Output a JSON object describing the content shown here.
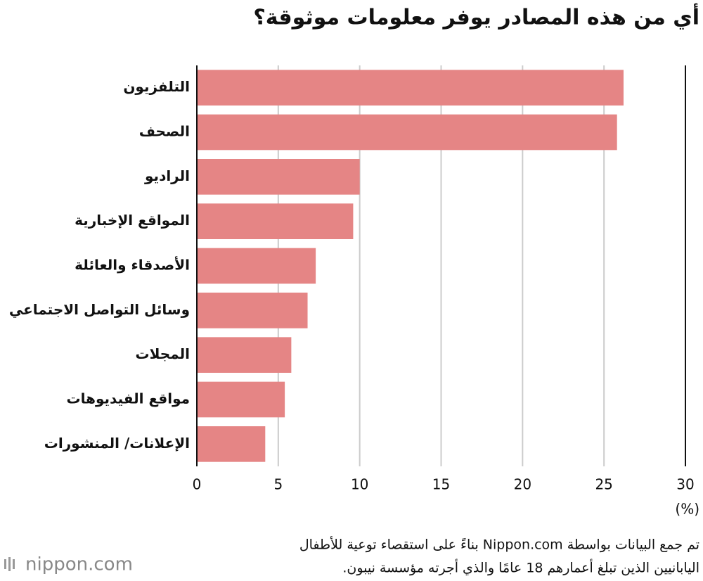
{
  "chart_data": {
    "type": "barh",
    "title": "أي من هذه المصادر يوفر معلومات موثوقة؟",
    "categories": [
      "التلفزيون",
      "الصحف",
      "الراديو",
      "المواقع الإخبارية",
      "الأصدقاء والعائلة",
      "وسائل التواصل الاجتماعي",
      "المجلات",
      "مواقع الفيديوهات",
      "الإعلانات/ المنشورات"
    ],
    "values": [
      26.2,
      25.8,
      10.0,
      9.6,
      7.3,
      6.8,
      5.8,
      5.4,
      4.2
    ],
    "color": "#e58585",
    "xlim": [
      0,
      30
    ],
    "xticks": [
      0,
      5,
      10,
      15,
      20,
      25,
      30
    ],
    "x_label": "(%)",
    "grid": true,
    "note": [
      "تم جمع البيانات بواسطة Nippon.com بناءً على استقصاء توعية للأطفال",
      "اليابانيين الذين تبلغ أعمارهم 18 عامًا والذي أجرته مؤسسة نيبون."
    ],
    "logo": "nippon.com"
  }
}
